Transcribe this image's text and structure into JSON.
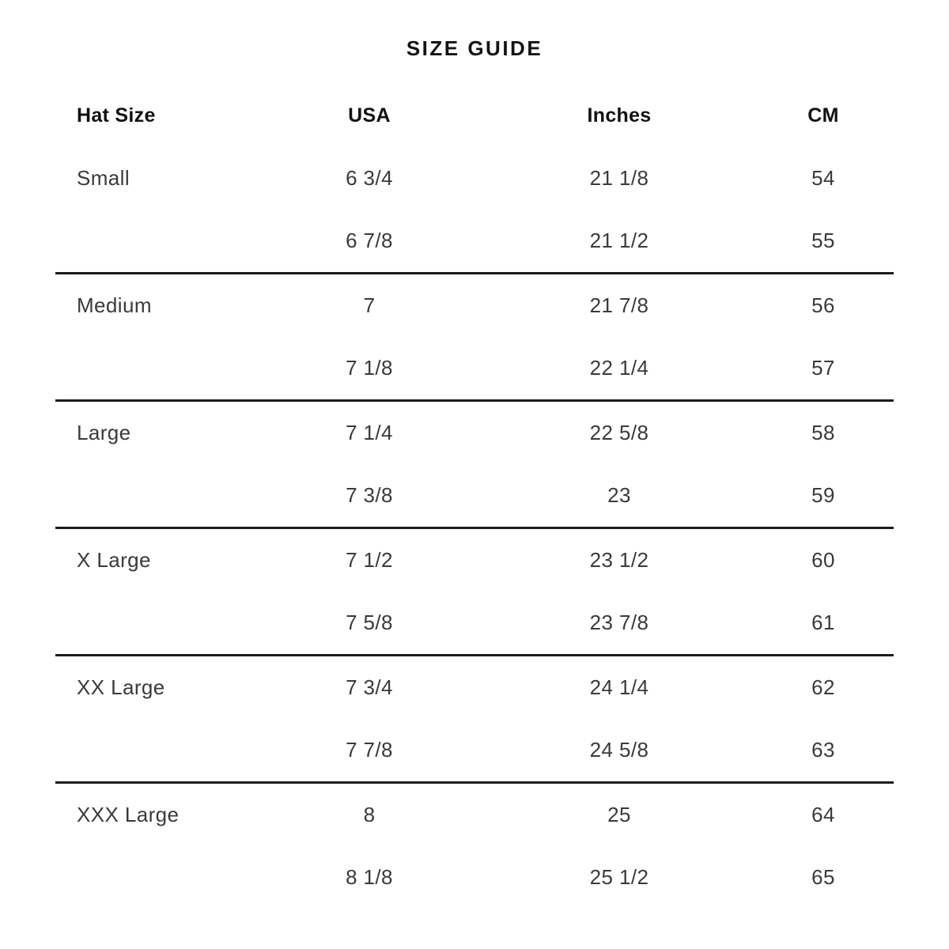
{
  "page": {
    "title": "SIZE GUIDE"
  },
  "colors": {
    "background": "#ffffff",
    "heading_text": "#141414",
    "data_text": "#3a3a3a",
    "divider": "#1c1c1c"
  },
  "table": {
    "columns": [
      {
        "key": "hat_size",
        "label": "Hat Size",
        "align": "left"
      },
      {
        "key": "usa",
        "label": "USA",
        "align": "center"
      },
      {
        "key": "inches",
        "label": "Inches",
        "align": "center"
      },
      {
        "key": "cm",
        "label": "CM",
        "align": "center"
      }
    ],
    "groups": [
      {
        "name": "Small",
        "rows": [
          [
            "Small",
            "6 3/4",
            "21 1/8",
            "54"
          ],
          [
            "",
            "6 7/8",
            "21 1/2",
            "55"
          ]
        ]
      },
      {
        "name": "Medium",
        "rows": [
          [
            "Medium",
            "7",
            "21 7/8",
            "56"
          ],
          [
            "",
            "7 1/8",
            "22 1/4",
            "57"
          ]
        ]
      },
      {
        "name": "Large",
        "rows": [
          [
            "Large",
            "7 1/4",
            "22 5/8",
            "58"
          ],
          [
            "",
            "7 3/8",
            "23",
            "59"
          ]
        ]
      },
      {
        "name": "X Large",
        "rows": [
          [
            "X Large",
            "7 1/2",
            "23 1/2",
            "60"
          ],
          [
            "",
            "7 5/8",
            "23 7/8",
            "61"
          ]
        ]
      },
      {
        "name": "XX Large",
        "rows": [
          [
            "XX Large",
            "7 3/4",
            "24 1/4",
            "62"
          ],
          [
            "",
            "7 7/8",
            "24 5/8",
            "63"
          ]
        ]
      },
      {
        "name": "XXX Large",
        "rows": [
          [
            "XXX Large",
            "8",
            "25",
            "64"
          ],
          [
            "",
            "8 1/8",
            "25 1/2",
            "65"
          ]
        ]
      }
    ]
  }
}
